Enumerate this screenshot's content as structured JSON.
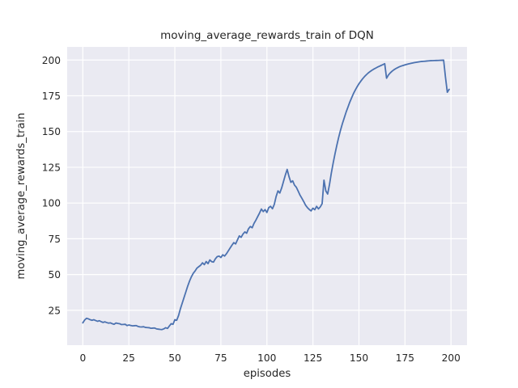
{
  "chart_data": {
    "type": "line",
    "title": "moving_average_rewards_train of DQN",
    "xlabel": "episodes",
    "ylabel": "moving_average_rewards_train",
    "x_start": 0,
    "x_step": 1,
    "xticks": [
      0,
      25,
      50,
      75,
      100,
      125,
      150,
      175,
      200
    ],
    "yticks": [
      25,
      50,
      75,
      100,
      125,
      150,
      175,
      200
    ],
    "xlim": [
      -8.5,
      208.7
    ],
    "ylim": [
      0.6,
      209.2
    ],
    "grid": true,
    "legend": "none",
    "series": [
      {
        "name": "moving_average_rewards_train",
        "values": [
          16.2,
          18.2,
          19.4,
          19.0,
          18.4,
          18.0,
          18.4,
          17.8,
          17.3,
          17.7,
          17.0,
          16.5,
          16.9,
          16.4,
          16.0,
          16.2,
          15.6,
          15.2,
          16.1,
          15.8,
          15.6,
          15.0,
          15.1,
          15.2,
          14.3,
          14.7,
          14.4,
          14.1,
          14.2,
          14.3,
          13.7,
          13.4,
          13.3,
          13.5,
          13.0,
          12.9,
          12.8,
          12.4,
          12.5,
          12.6,
          12.0,
          11.8,
          11.6,
          11.5,
          12.0,
          12.8,
          12.3,
          14.0,
          15.6,
          15.2,
          18.4,
          18.0,
          21.3,
          26.0,
          30.0,
          34.0,
          38.0,
          42.0,
          45.5,
          48.5,
          50.9,
          52.5,
          54.5,
          55.5,
          56.5,
          58.2,
          56.9,
          59.1,
          57.6,
          60.2,
          59.0,
          58.7,
          61.0,
          62.5,
          62.9,
          61.9,
          63.8,
          62.9,
          64.5,
          66.5,
          68.5,
          70.5,
          72.3,
          71.4,
          74.2,
          77.0,
          76.0,
          78.3,
          79.8,
          78.9,
          82.0,
          83.6,
          82.7,
          85.8,
          88.0,
          90.5,
          93.0,
          95.8,
          94.0,
          95.4,
          93.4,
          96.8,
          97.7,
          96.0,
          99.0,
          104.5,
          108.5,
          107.0,
          110.5,
          115.0,
          119.5,
          123.5,
          118.5,
          114.5,
          115.5,
          112.5,
          111.0,
          108.3,
          105.5,
          103.3,
          101.0,
          98.5,
          96.8,
          95.5,
          94.5,
          96.4,
          95.3,
          97.7,
          95.9,
          97.3,
          99.6,
          116.0,
          108.5,
          106.3,
          113.0,
          121.0,
          128.0,
          134.5,
          140.5,
          146.0,
          151.0,
          155.5,
          159.5,
          163.5,
          167.0,
          170.5,
          173.5,
          176.5,
          179.0,
          181.3,
          183.4,
          185.2,
          186.9,
          188.4,
          189.7,
          190.9,
          191.9,
          192.8,
          193.6,
          194.3,
          195.0,
          195.6,
          196.2,
          196.8,
          197.4,
          187.3,
          189.5,
          191.0,
          192.2,
          193.2,
          194.0,
          194.7,
          195.3,
          195.8,
          196.2,
          196.6,
          197.0,
          197.3,
          197.6,
          197.9,
          198.2,
          198.4,
          198.6,
          198.8,
          199.0,
          199.1,
          199.2,
          199.35,
          199.45,
          199.55,
          199.6,
          199.65,
          199.7,
          199.75,
          199.8,
          199.85,
          199.9,
          188.0,
          177.5,
          179.5
        ]
      }
    ],
    "colors": {
      "figure_bg": "#ffffff",
      "axes_bg": "#eaeaf2",
      "grid": "#ffffff",
      "line": "#4c72b0",
      "text": "#262626"
    }
  }
}
